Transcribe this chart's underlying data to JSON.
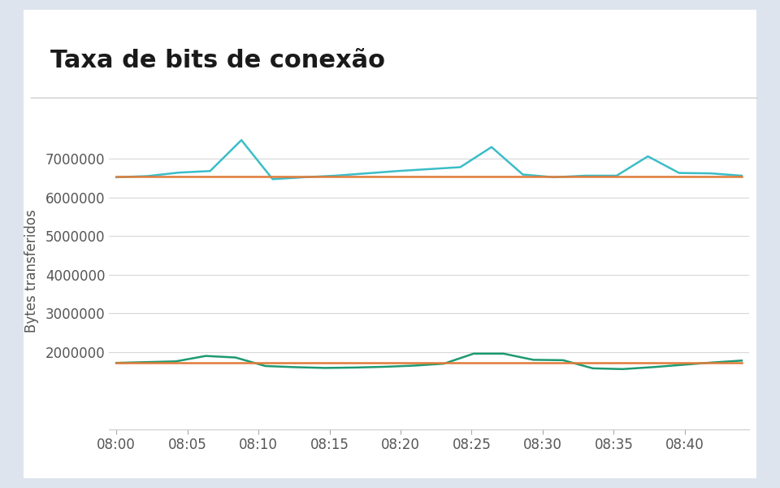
{
  "title": "Taxa de bits de conexão",
  "ylabel": "Bytes transferidos",
  "background_outer": "#dde4ee",
  "background_inner": "#ffffff",
  "x_labels": [
    "08:00",
    "08:05",
    "08:10",
    "08:15",
    "08:20",
    "08:25",
    "08:30",
    "08:35",
    "08:40"
  ],
  "egress_cyan": [
    6520000,
    6550000,
    6640000,
    6680000,
    7480000,
    6470000,
    6520000,
    6560000,
    6620000,
    6680000,
    6730000,
    6780000,
    7300000,
    6590000,
    6520000,
    6560000,
    6560000,
    7060000,
    6630000,
    6620000,
    6560000
  ],
  "egress_orange_flat": 6530000,
  "ingress_green": [
    1720000,
    1740000,
    1760000,
    1900000,
    1860000,
    1640000,
    1610000,
    1590000,
    1600000,
    1620000,
    1650000,
    1700000,
    1960000,
    1960000,
    1800000,
    1790000,
    1580000,
    1560000,
    1610000,
    1670000,
    1730000,
    1780000
  ],
  "ingress_orange_flat": 1720000,
  "cyan_color": "#3bbdc8",
  "green_color": "#1e9a72",
  "orange_color": "#e07b39",
  "ylim_min": 0,
  "ylim_max": 8200000,
  "yticks": [
    2000000,
    3000000,
    4000000,
    5000000,
    6000000,
    7000000
  ],
  "title_fontsize": 22,
  "label_fontsize": 12,
  "tick_fontsize": 12,
  "separator_color": "#cccccc"
}
